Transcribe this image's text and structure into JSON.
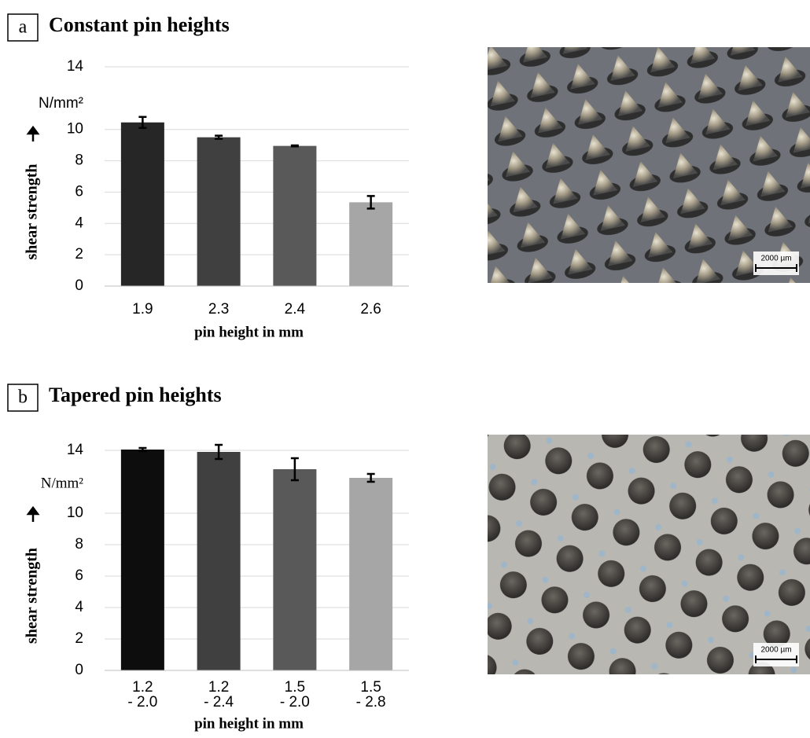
{
  "chart_data": [
    {
      "type": "bar",
      "panel": "a",
      "title": "Constant pin heights",
      "categories": [
        [
          "1.9"
        ],
        [
          "2.3"
        ],
        [
          "2.4"
        ],
        [
          "2.6"
        ]
      ],
      "values": [
        10.45,
        9.5,
        8.95,
        5.35
      ],
      "errors": [
        0.35,
        0.1,
        0.03,
        0.4
      ],
      "colors": [
        "#262626",
        "#404040",
        "#595959",
        "#a6a6a6"
      ],
      "ylim": [
        0,
        14
      ],
      "yticks": [
        0,
        2,
        4,
        6,
        8,
        10,
        14
      ],
      "grid": true,
      "xlabel": "pin height in mm",
      "ylabel": "shear strength",
      "yunit": "N/mm²",
      "scale_bar": "2000 µm"
    },
    {
      "type": "bar",
      "panel": "b",
      "title": "Tapered pin heights",
      "categories": [
        [
          "1.2",
          "- 2.0"
        ],
        [
          "1.2",
          "- 2.4"
        ],
        [
          "1.5",
          "- 2.0"
        ],
        [
          "1.5",
          "- 2.8"
        ]
      ],
      "values": [
        14.05,
        13.9,
        12.8,
        12.25
      ],
      "errors": [
        0.1,
        0.45,
        0.7,
        0.25
      ],
      "colors": [
        "#0d0d0d",
        "#404040",
        "#595959",
        "#a6a6a6"
      ],
      "ylim": [
        0,
        14
      ],
      "yticks": [
        0,
        2,
        4,
        6,
        8,
        10,
        14
      ],
      "grid": true,
      "xlabel": "pin height in mm",
      "ylabel": "shear strength",
      "yunit": "N/mm²",
      "scale_bar": "2000 µm"
    }
  ]
}
